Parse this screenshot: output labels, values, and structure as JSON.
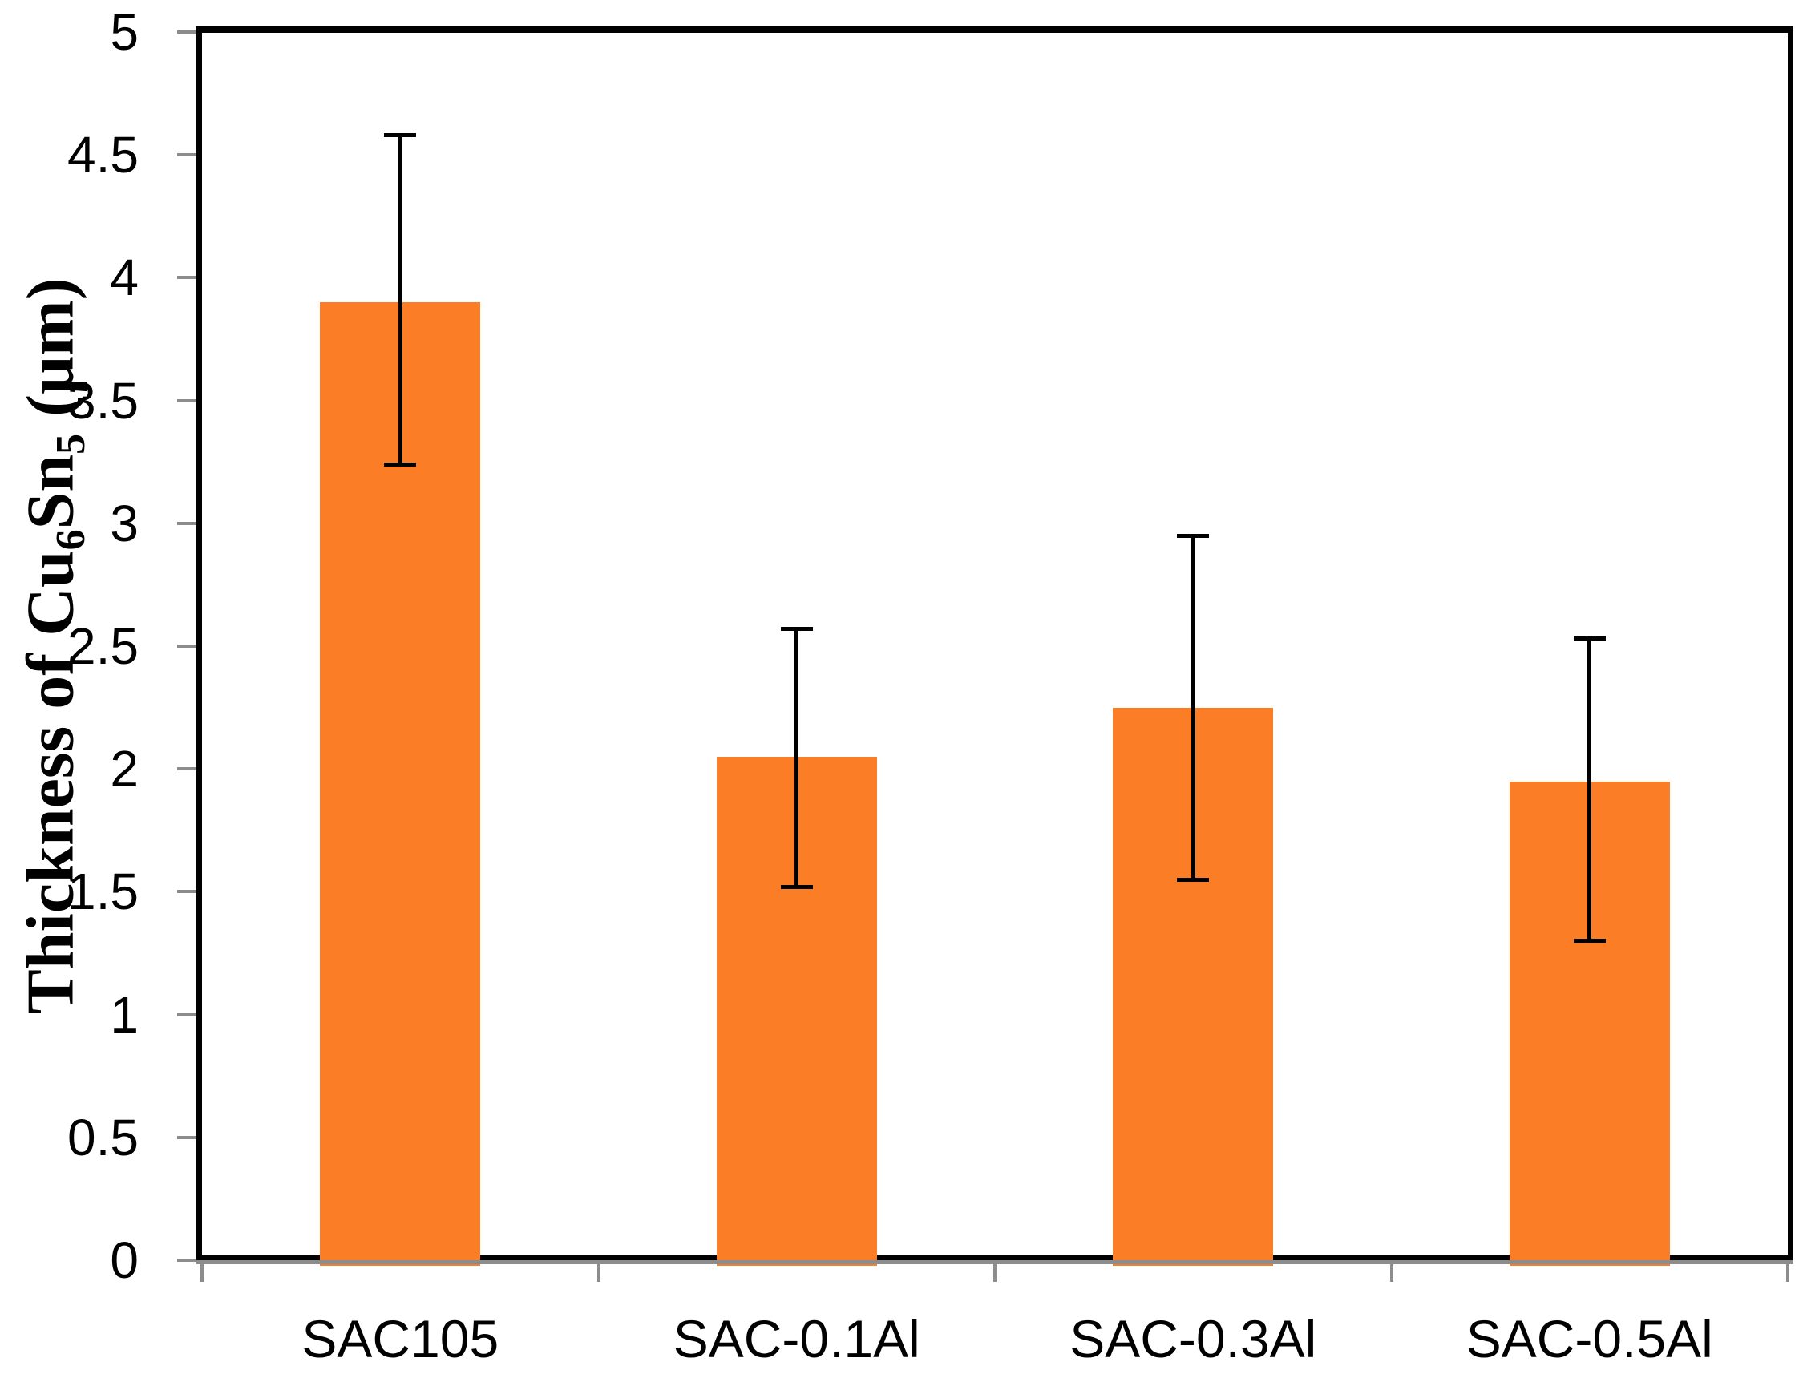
{
  "chart_data": {
    "type": "bar",
    "title": "",
    "xlabel": "",
    "ylabel": "Thickness of Cu6Sn5 (μm)",
    "ylabel_segments": [
      {
        "text": "Thickness of Cu",
        "sub": false
      },
      {
        "text": "6",
        "sub": true
      },
      {
        "text": "Sn",
        "sub": false
      },
      {
        "text": "5",
        "sub": true
      },
      {
        "text": " (μm)",
        "sub": false
      }
    ],
    "categories": [
      "SAC105",
      "SAC-0.1Al",
      "SAC-0.3Al",
      "SAC-0.5Al"
    ],
    "values": [
      3.9,
      2.05,
      2.25,
      1.95
    ],
    "error_upper_cap": [
      4.58,
      2.57,
      2.95,
      2.53
    ],
    "error_lower_cap": [
      3.24,
      1.52,
      1.55,
      1.3
    ],
    "ylim": [
      0,
      5
    ],
    "ytick_step": 0.5,
    "ytick_labels": [
      "0",
      "0.5",
      "1",
      "1.5",
      "2",
      "2.5",
      "3",
      "3.5",
      "4",
      "4.5",
      "5"
    ],
    "grid": false,
    "legend": "none",
    "bar_color": "#FB7E26",
    "error_color": "#000000",
    "axis_border_color": "#000000",
    "tick_color": "#8C8C8C"
  }
}
